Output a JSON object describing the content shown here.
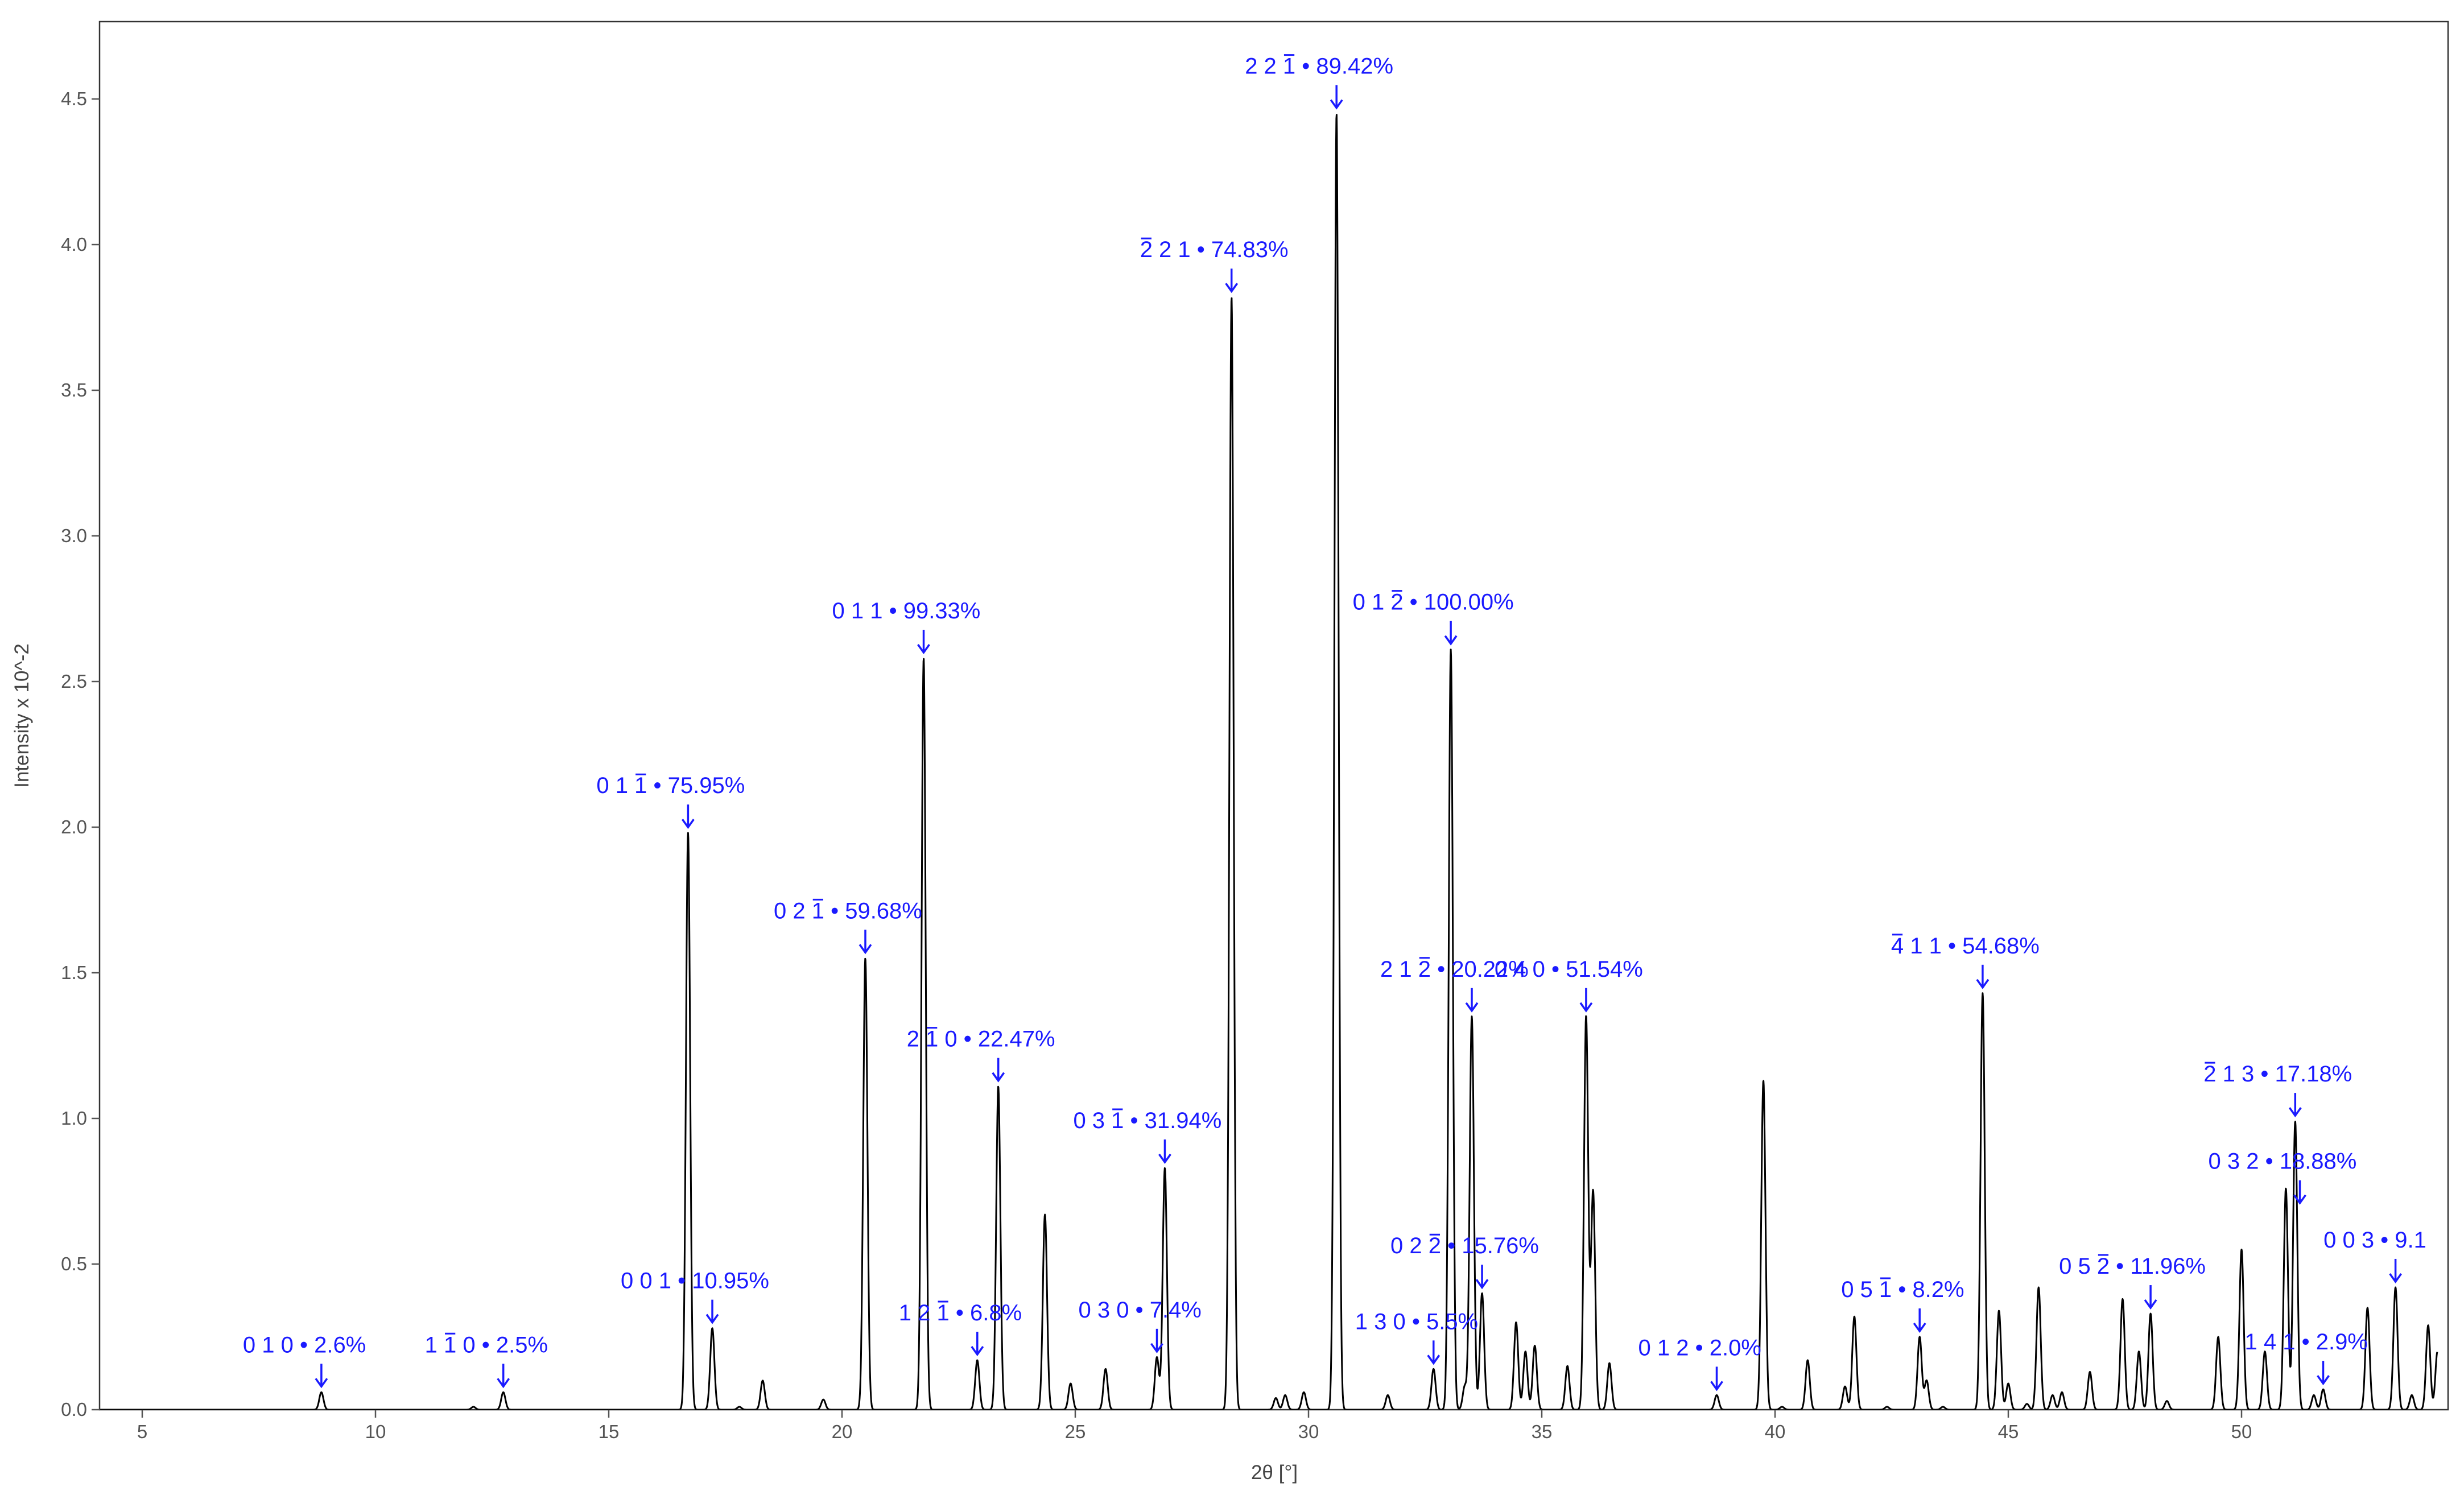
{
  "chart_data": {
    "type": "line",
    "title": "",
    "xlabel": "2θ [°]",
    "ylabel": "Intensity x 10^-2",
    "xlim": [
      4.1,
      54.2
    ],
    "ylim": [
      0,
      4.75
    ],
    "xticks": [
      "5",
      "10",
      "15",
      "20",
      "25",
      "30",
      "35",
      "40",
      "45",
      "50"
    ],
    "yticks": [
      "0.0",
      "0.5",
      "1.0",
      "1.5",
      "2.0",
      "2.5",
      "3.0",
      "3.5",
      "4.0",
      "4.5"
    ],
    "grid": false,
    "peaks": [
      {
        "x": 8.84,
        "y": 0.06
      },
      {
        "x": 12.1,
        "y": 0.01
      },
      {
        "x": 12.74,
        "y": 0.06
      },
      {
        "x": 16.7,
        "y": 1.98
      },
      {
        "x": 17.22,
        "y": 0.28
      },
      {
        "x": 17.8,
        "y": 0.01
      },
      {
        "x": 18.3,
        "y": 0.1
      },
      {
        "x": 19.6,
        "y": 0.035
      },
      {
        "x": 20.5,
        "y": 1.55
      },
      {
        "x": 21.75,
        "y": 2.58
      },
      {
        "x": 22.9,
        "y": 0.17
      },
      {
        "x": 23.35,
        "y": 1.11
      },
      {
        "x": 24.35,
        "y": 0.67
      },
      {
        "x": 24.9,
        "y": 0.09
      },
      {
        "x": 25.65,
        "y": 0.14
      },
      {
        "x": 26.75,
        "y": 0.18
      },
      {
        "x": 26.92,
        "y": 0.83
      },
      {
        "x": 28.35,
        "y": 3.82
      },
      {
        "x": 29.3,
        "y": 0.04
      },
      {
        "x": 29.5,
        "y": 0.05
      },
      {
        "x": 29.9,
        "y": 0.06
      },
      {
        "x": 30.6,
        "y": 4.45
      },
      {
        "x": 31.7,
        "y": 0.05
      },
      {
        "x": 32.68,
        "y": 0.14
      },
      {
        "x": 33.05,
        "y": 2.61
      },
      {
        "x": 33.35,
        "y": 0.08
      },
      {
        "x": 33.5,
        "y": 1.35
      },
      {
        "x": 33.72,
        "y": 0.4
      },
      {
        "x": 34.45,
        "y": 0.3
      },
      {
        "x": 34.65,
        "y": 0.2
      },
      {
        "x": 34.85,
        "y": 0.22
      },
      {
        "x": 35.55,
        "y": 0.15
      },
      {
        "x": 35.95,
        "y": 1.35
      },
      {
        "x": 36.1,
        "y": 0.75
      },
      {
        "x": 36.45,
        "y": 0.16
      },
      {
        "x": 38.75,
        "y": 0.05
      },
      {
        "x": 39.75,
        "y": 1.13
      },
      {
        "x": 40.15,
        "y": 0.01
      },
      {
        "x": 40.7,
        "y": 0.17
      },
      {
        "x": 41.5,
        "y": 0.08
      },
      {
        "x": 41.7,
        "y": 0.32
      },
      {
        "x": 42.4,
        "y": 0.01
      },
      {
        "x": 43.1,
        "y": 0.25
      },
      {
        "x": 43.25,
        "y": 0.1
      },
      {
        "x": 43.6,
        "y": 0.01
      },
      {
        "x": 44.45,
        "y": 1.43
      },
      {
        "x": 44.8,
        "y": 0.34
      },
      {
        "x": 45.0,
        "y": 0.09
      },
      {
        "x": 45.4,
        "y": 0.02
      },
      {
        "x": 45.65,
        "y": 0.42
      },
      {
        "x": 45.95,
        "y": 0.05
      },
      {
        "x": 46.15,
        "y": 0.06
      },
      {
        "x": 46.75,
        "y": 0.13
      },
      {
        "x": 47.45,
        "y": 0.38
      },
      {
        "x": 47.8,
        "y": 0.2
      },
      {
        "x": 48.05,
        "y": 0.33
      },
      {
        "x": 48.4,
        "y": 0.03
      },
      {
        "x": 49.5,
        "y": 0.25
      },
      {
        "x": 50.0,
        "y": 0.55
      },
      {
        "x": 50.5,
        "y": 0.2
      },
      {
        "x": 50.95,
        "y": 0.76
      },
      {
        "x": 51.15,
        "y": 0.99
      },
      {
        "x": 51.55,
        "y": 0.05
      },
      {
        "x": 51.75,
        "y": 0.07
      },
      {
        "x": 52.7,
        "y": 0.35
      },
      {
        "x": 53.3,
        "y": 0.42
      },
      {
        "x": 53.65,
        "y": 0.05
      },
      {
        "x": 54.0,
        "y": 0.29
      },
      {
        "x": 54.2,
        "y": 0.2
      }
    ],
    "annotations": [
      {
        "hkl": "0 1 0",
        "bar": [],
        "pct": "2.6%",
        "x": 8.84,
        "y": 0.06
      },
      {
        "hkl": "1 1 0",
        "bar": [
          1
        ],
        "pct": "2.5%",
        "x": 12.74,
        "y": 0.06
      },
      {
        "hkl": "0 1 1",
        "bar": [
          2
        ],
        "pct": "75.95%",
        "x": 16.7,
        "y": 1.98
      },
      {
        "hkl": "0 0 1",
        "bar": [],
        "pct": "10.95%",
        "x": 17.22,
        "y": 0.28
      },
      {
        "hkl": "0 2 1",
        "bar": [
          2
        ],
        "pct": "59.68%",
        "x": 20.5,
        "y": 1.55
      },
      {
        "hkl": "0 1 1",
        "bar": [],
        "pct": "99.33%",
        "x": 21.75,
        "y": 2.58
      },
      {
        "hkl": "1 2 1",
        "bar": [
          2
        ],
        "pct": "6.8%",
        "x": 22.9,
        "y": 0.17
      },
      {
        "hkl": "2 1 0",
        "bar": [
          1
        ],
        "pct": "22.47%",
        "x": 23.35,
        "y": 1.11
      },
      {
        "hkl": "0 3 0",
        "bar": [],
        "pct": "7.4%",
        "x": 26.75,
        "y": 0.18
      },
      {
        "hkl": "0 3 1",
        "bar": [
          2
        ],
        "pct": "31.94%",
        "x": 26.92,
        "y": 0.83
      },
      {
        "hkl": "2 2 1",
        "bar": [
          0
        ],
        "pct": "74.83%",
        "x": 28.35,
        "y": 3.82
      },
      {
        "hkl": "2 2 1",
        "bar": [
          2
        ],
        "pct": "89.42%",
        "x": 30.6,
        "y": 4.45
      },
      {
        "hkl": "1 3 0",
        "bar": [],
        "pct": "5.5%",
        "x": 32.68,
        "y": 0.14
      },
      {
        "hkl": "0 1 2",
        "bar": [
          2
        ],
        "pct": "100.00%",
        "x": 33.05,
        "y": 2.61
      },
      {
        "hkl": "2 1 2",
        "bar": [
          2
        ],
        "pct": "20.22%",
        "x": 33.5,
        "y": 1.35
      },
      {
        "hkl": "0 2 2",
        "bar": [
          2
        ],
        "pct": "15.76%",
        "x": 33.72,
        "y": 0.4
      },
      {
        "hkl": "0 4 0",
        "bar": [],
        "pct": "51.54%",
        "x": 35.95,
        "y": 1.35
      },
      {
        "hkl": "0 1 2",
        "bar": [],
        "pct": "2.0%",
        "x": 38.75,
        "y": 0.05
      },
      {
        "hkl": "0 5 1",
        "bar": [
          2
        ],
        "pct": "8.2%",
        "x": 43.1,
        "y": 0.25
      },
      {
        "hkl": "4 1 1",
        "bar": [
          0
        ],
        "pct": "54.68%",
        "x": 44.45,
        "y": 1.43
      },
      {
        "hkl": "0 5 2",
        "bar": [
          2
        ],
        "pct": "11.96%",
        "x": 48.05,
        "y": 0.33
      },
      {
        "hkl": "2 1 3",
        "bar": [
          0
        ],
        "pct": "17.18%",
        "x": 51.15,
        "y": 0.99
      },
      {
        "hkl": "0 3 2",
        "bar": [],
        "pct": "18.88%",
        "x": 51.25,
        "y": 0.69
      },
      {
        "hkl": "1 4 1",
        "bar": [],
        "pct": "2.9%",
        "x": 51.75,
        "y": 0.07
      },
      {
        "hkl": "0 0 3",
        "bar": [],
        "pct": "9.1",
        "x": 53.3,
        "y": 0.42
      }
    ]
  }
}
